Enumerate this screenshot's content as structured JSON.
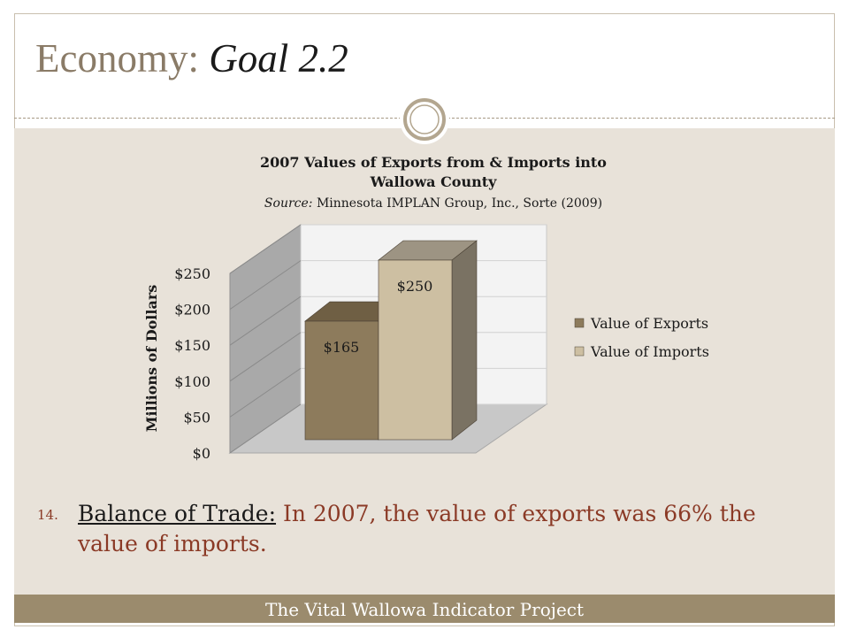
{
  "slide": {
    "title_prefix": "Economy: ",
    "title_goal": "Goal 2.2",
    "footer": "The Vital Wallowa Indicator Project"
  },
  "point": {
    "number": "14.",
    "lead": "Balance of Trade:",
    "text": " In 2007, the value of exports was 66% the value of imports."
  },
  "colors": {
    "exports": "#8d7b5c",
    "imports": "#cdbfa2",
    "band": "#e8e2d9",
    "footer": "#9b8b6d"
  },
  "chart_data": {
    "type": "bar",
    "title": "2007  Values of Exports from & Imports into Wallowa County",
    "title_lines": [
      "2007  Values of Exports from & Imports into",
      "Wallowa County"
    ],
    "source_label": "Source:",
    "source": " Minnesota IMPLAN Group, Inc., Sorte (2009)",
    "ylabel": "Millions of Dollars",
    "xlabel": "",
    "ylim": [
      0,
      250
    ],
    "yticks": [
      0,
      50,
      100,
      150,
      200,
      250
    ],
    "ytick_labels": [
      "$0",
      "$50",
      "$100",
      "$150",
      "$200",
      "$250"
    ],
    "categories": [
      ""
    ],
    "series": [
      {
        "name": "Value of Exports",
        "values": [
          165
        ],
        "label": "$165"
      },
      {
        "name": "Value of Imports",
        "values": [
          250
        ],
        "label": "$250"
      }
    ],
    "grid": true,
    "legend": "right",
    "three_d": true
  }
}
